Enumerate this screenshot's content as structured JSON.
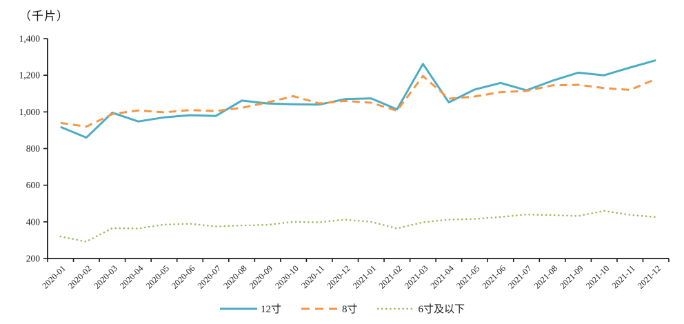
{
  "chart_data": {
    "type": "line",
    "unit": "（千片）",
    "categories": [
      "2020-01",
      "2020-02",
      "2020-03",
      "2020-04",
      "2020-05",
      "2020-06",
      "2020-07",
      "2020-08",
      "2020-09",
      "2020-10",
      "2020-11",
      "2020-12",
      "2021-01",
      "2021-02",
      "2021-03",
      "2021-04",
      "2021-05",
      "2021-06",
      "2021-07",
      "2021-08",
      "2021-09",
      "2021-10",
      "2021-11",
      "2021-12"
    ],
    "series": [
      {
        "name": "12寸",
        "style": "solid",
        "color": "#4BACC6",
        "values": [
          918,
          860,
          996,
          948,
          970,
          982,
          978,
          1062,
          1046,
          1042,
          1040,
          1070,
          1074,
          1014,
          1262,
          1052,
          1122,
          1158,
          1118,
          1170,
          1214,
          1200,
          1242,
          1282
        ]
      },
      {
        "name": "8寸",
        "style": "dashed",
        "color": "#F79646",
        "values": [
          940,
          920,
          988,
          1008,
          998,
          1010,
          1005,
          1022,
          1052,
          1086,
          1046,
          1060,
          1050,
          1006,
          1196,
          1072,
          1084,
          1108,
          1114,
          1145,
          1148,
          1130,
          1120,
          1180
        ]
      },
      {
        "name": "6寸及以下",
        "style": "dotted",
        "color": "#9BBB59",
        "values": [
          320,
          292,
          366,
          364,
          385,
          390,
          375,
          380,
          384,
          400,
          398,
          412,
          400,
          364,
          398,
          412,
          416,
          427,
          440,
          437,
          432,
          460,
          438,
          426
        ]
      }
    ],
    "ylim": [
      200,
      1400
    ],
    "ytick_step": 200,
    "ytick_labels": [
      "200",
      "400",
      "600",
      "800",
      "1,000",
      "1,200",
      "1,400"
    ],
    "grid": false,
    "legend_position": "bottom",
    "axis_color": "#1a1a1a"
  }
}
